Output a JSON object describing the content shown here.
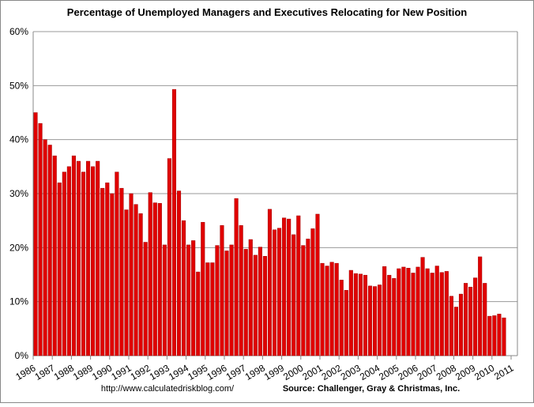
{
  "chart_data": {
    "type": "bar",
    "title": "Percentage of Unemployed Managers and Executives Relocating for New Position",
    "footnote_left": "http://www.calculatedriskblog.com/",
    "footnote_right": "Source: Challenger, Gray & Christmas, Inc.",
    "color": "#e00000",
    "grid": true,
    "x": [
      1986,
      1986.25,
      1986.5,
      1986.75,
      1987,
      1987.25,
      1987.5,
      1987.75,
      1988,
      1988.25,
      1988.5,
      1988.75,
      1989,
      1989.25,
      1989.5,
      1989.75,
      1990,
      1990.25,
      1990.5,
      1990.75,
      1991,
      1991.25,
      1991.5,
      1991.75,
      1992,
      1992.25,
      1992.5,
      1992.75,
      1993,
      1993.25,
      1993.5,
      1993.75,
      1994,
      1994.25,
      1994.5,
      1994.75,
      1995,
      1995.25,
      1995.5,
      1995.75,
      1996,
      1996.25,
      1996.5,
      1996.75,
      1997,
      1997.25,
      1997.5,
      1997.75,
      1998,
      1998.25,
      1998.5,
      1998.75,
      1999,
      1999.25,
      1999.5,
      1999.75,
      2000,
      2000.25,
      2000.5,
      2000.75,
      2001,
      2001.25,
      2001.5,
      2001.75,
      2002,
      2002.25,
      2002.5,
      2002.75,
      2003,
      2003.25,
      2003.5,
      2003.75,
      2004,
      2004.25,
      2004.5,
      2004.75,
      2005,
      2005.25,
      2005.5,
      2005.75,
      2006,
      2006.25,
      2006.5,
      2006.75,
      2007,
      2007.25,
      2007.5,
      2007.75,
      2008,
      2008.25,
      2008.5,
      2008.75,
      2009,
      2009.25,
      2009.5,
      2009.75,
      2010,
      2010.25,
      2010.5
    ],
    "values": [
      45,
      43,
      40,
      39,
      37,
      32,
      34,
      35,
      37,
      36,
      34,
      36,
      35,
      36,
      31,
      32,
      30,
      34,
      31,
      27,
      30,
      28,
      26.3,
      21,
      30.2,
      28.3,
      28.2,
      20.5,
      36.5,
      49.3,
      30.5,
      25,
      20.5,
      21.3,
      15.5,
      24.7,
      17.2,
      17.2,
      20.4,
      24.1,
      19.4,
      20.5,
      29.1,
      24.1,
      19.7,
      21.5,
      18.6,
      20.1,
      18.4,
      27.1,
      23.3,
      23.6,
      25.5,
      25.3,
      22.4,
      25.9,
      20.4,
      21.6,
      23.5,
      26.2,
      17.1,
      16.6,
      17.3,
      17.1,
      14,
      12.1,
      15.8,
      15.2,
      15.1,
      14.9,
      12.9,
      12.8,
      13.1,
      16.5,
      14.9,
      14.3,
      16.1,
      16.4,
      16.2,
      15.3,
      16.4,
      18.2,
      16.1,
      15.3,
      16.6,
      15.4,
      15.6,
      11,
      9,
      11.4,
      13.4,
      12.7,
      14.4,
      18.3,
      13.4,
      7.3,
      7.4,
      7.7,
      7.0
    ],
    "xlim": [
      1986,
      2011.33
    ],
    "xticks": [
      1986,
      1987,
      1988,
      1989,
      1990,
      1991,
      1992,
      1993,
      1994,
      1995,
      1996,
      1997,
      1998,
      1999,
      2000,
      2001,
      2002,
      2003,
      2004,
      2005,
      2006,
      2007,
      2008,
      2009,
      2010,
      2011
    ],
    "ylim": [
      0,
      60
    ],
    "yticks": [
      {
        "value": 0,
        "label": "0%"
      },
      {
        "value": 10,
        "label": "10%"
      },
      {
        "value": 20,
        "label": "20%"
      },
      {
        "value": 30,
        "label": "30%"
      },
      {
        "value": 40,
        "label": "40%"
      },
      {
        "value": 50,
        "label": "50%"
      },
      {
        "value": 60,
        "label": "60%"
      }
    ]
  }
}
